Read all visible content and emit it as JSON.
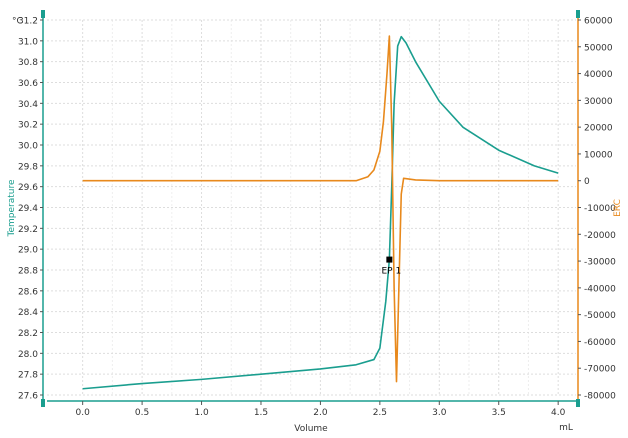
{
  "chart_data": {
    "type": "line",
    "xlabel": "Volume",
    "x_unit": "mL",
    "left_unit": "°C",
    "left_axis_label": "Temperature",
    "right_axis_label": "ERC",
    "xlim": [
      -0.3,
      4.15
    ],
    "ylim_left": [
      27.6,
      31.2
    ],
    "ylim_right": [
      -80000,
      60000
    ],
    "x_ticks": [
      "0.0",
      "0.5",
      "1.0",
      "1.5",
      "2.0",
      "2.5",
      "3.0",
      "3.5",
      "4.0"
    ],
    "y_left_ticks": [
      "27.6",
      "27.8",
      "28.0",
      "28.2",
      "28.4",
      "28.6",
      "28.8",
      "29.0",
      "29.2",
      "29.4",
      "29.6",
      "29.8",
      "30.0",
      "30.2",
      "30.4",
      "30.6",
      "30.8",
      "31.0",
      "31.2"
    ],
    "y_right_ticks": [
      "-80000",
      "-70000",
      "-60000",
      "-50000",
      "-40000",
      "-30000",
      "-20000",
      "-10000",
      "0",
      "10000",
      "20000",
      "30000",
      "40000",
      "50000",
      "60000"
    ],
    "grid": true,
    "series": [
      {
        "name": "Temperature",
        "axis": "left",
        "color": "#1a9e8f",
        "x": [
          0.0,
          0.5,
          1.0,
          1.5,
          2.0,
          2.3,
          2.45,
          2.5,
          2.55,
          2.58,
          2.6,
          2.62,
          2.65,
          2.68,
          2.72,
          2.8,
          3.0,
          3.2,
          3.5,
          3.8,
          4.0
        ],
        "y": [
          27.66,
          27.71,
          27.75,
          27.8,
          27.85,
          27.89,
          27.94,
          28.05,
          28.5,
          28.9,
          29.6,
          30.4,
          30.95,
          31.04,
          30.98,
          30.8,
          30.42,
          30.17,
          29.95,
          29.8,
          29.73
        ]
      },
      {
        "name": "ERC",
        "axis": "right",
        "color": "#e8891c",
        "x": [
          0.0,
          0.5,
          1.0,
          1.5,
          2.0,
          2.3,
          2.4,
          2.45,
          2.5,
          2.53,
          2.56,
          2.58,
          2.6,
          2.62,
          2.64,
          2.66,
          2.68,
          2.7,
          2.8,
          3.0,
          3.5,
          4.0
        ],
        "y": [
          0,
          0,
          0,
          0,
          0,
          0,
          1500,
          4000,
          11000,
          22000,
          40000,
          54000,
          20000,
          -40000,
          -75000,
          -40000,
          -5000,
          900,
          300,
          0,
          0,
          0
        ]
      }
    ],
    "endpoint": {
      "label": "EP 1",
      "x": 2.58,
      "y": 28.9
    }
  }
}
